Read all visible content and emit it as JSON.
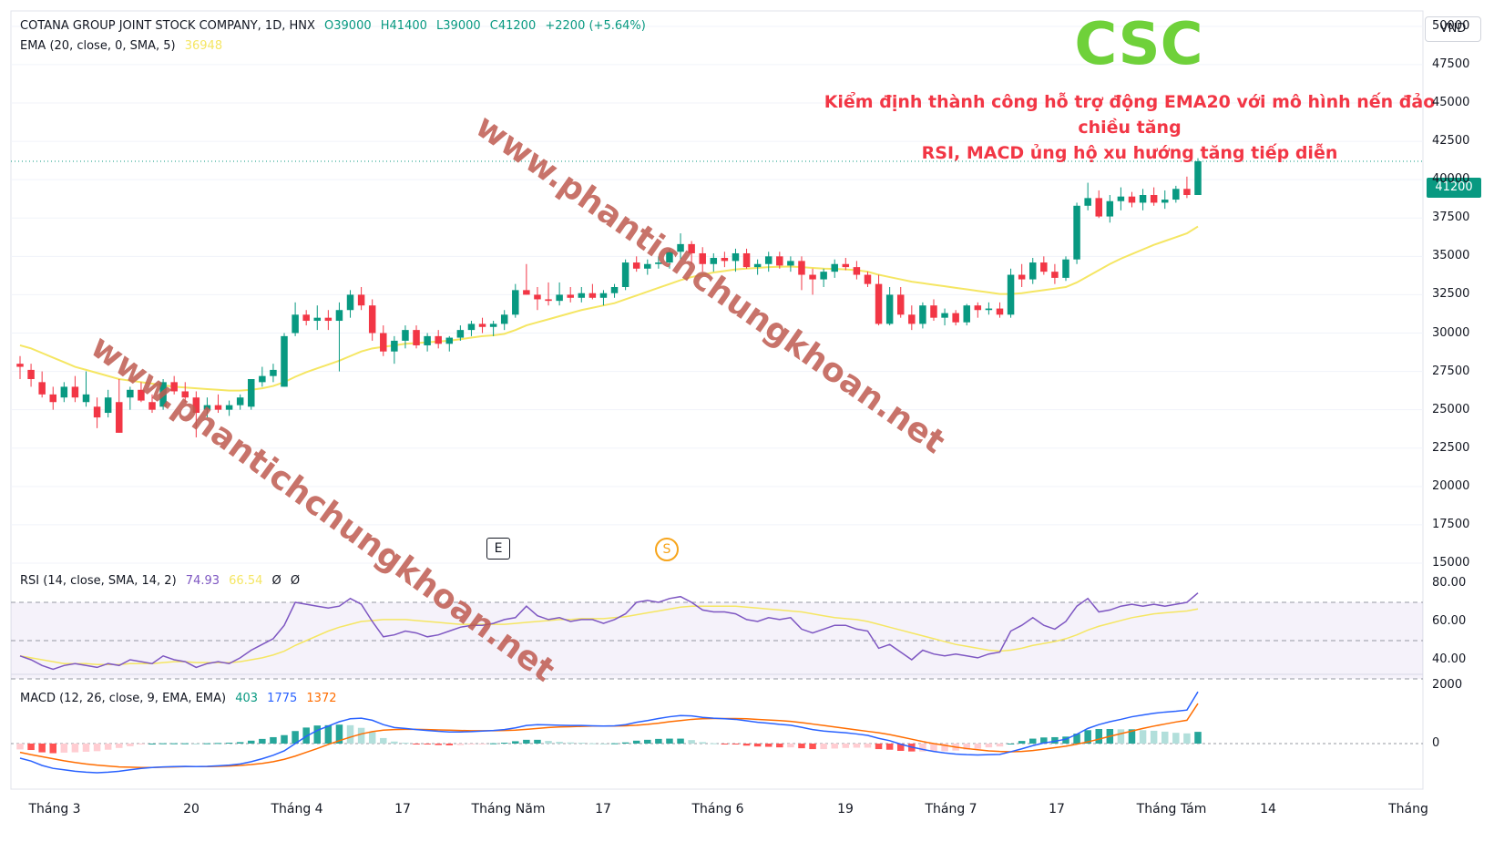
{
  "header": {
    "symbol": "COTANA GROUP JOINT STOCK COMPANY, 1D, HNX",
    "open": "O39000",
    "high": "H41400",
    "low": "L39000",
    "close": "C41200",
    "change": "+2200 (+5.64%)",
    "ema_label": "EMA (20, close, 0, SMA, 5)",
    "ema_value": "36948"
  },
  "ticker": "CSC",
  "annotation": {
    "line1": "Kiểm định thành công hỗ trợ động EMA20 với mô hình nến đảo chiều tăng",
    "line2": "RSI, MACD ủng hộ xu hướng tăng tiếp diễn"
  },
  "watermark": "www.phantichchungkhoan.net",
  "currency": "VND",
  "last_price_tag": "41200",
  "event_markers": {
    "earnings": "E",
    "split": "S"
  },
  "rsi_header": {
    "label": "RSI (14, close, SMA, 14, 2)",
    "value": "74.93",
    "ma": "66.54",
    "extra1": "Ø",
    "extra2": "Ø"
  },
  "macd_header": {
    "label": "MACD (12, 26, close, 9, EMA, EMA)",
    "hist": "403",
    "macd": "1775",
    "signal": "1372"
  },
  "x_labels": [
    "Tháng 3",
    "20",
    "Tháng 4",
    "17",
    "Tháng Năm",
    "17",
    "Tháng 6",
    "19",
    "Tháng 7",
    "17",
    "Tháng Tám",
    "14",
    "Tháng"
  ],
  "y_labels": [
    "50000",
    "47500",
    "45000",
    "42500",
    "40000",
    "37500",
    "35000",
    "32500",
    "30000",
    "27500",
    "25000",
    "22500",
    "20000",
    "17500",
    "15000"
  ],
  "rsi_y_labels": [
    "80.00",
    "60.00",
    "40.00"
  ],
  "macd_y_labels": [
    "2000",
    "0"
  ],
  "colors": {
    "up": "#089981",
    "down": "#f23645",
    "ema": "#f5e663",
    "rsi": "#7e57c2",
    "macd": "#2962ff",
    "signal": "#ff6d00",
    "ticker": "#6fd13a",
    "note": "#f23645"
  },
  "chart_data": {
    "type": "candlestick",
    "ylim": [
      15000,
      51000
    ],
    "candles": [
      [
        28000,
        28500,
        27000,
        27800
      ],
      [
        27600,
        28000,
        26500,
        27000
      ],
      [
        26800,
        27500,
        25800,
        26000
      ],
      [
        26000,
        26500,
        25000,
        25500
      ],
      [
        25800,
        26800,
        25500,
        26500
      ],
      [
        26500,
        27200,
        25500,
        25800
      ],
      [
        25500,
        27500,
        25200,
        26000
      ],
      [
        25200,
        25800,
        23800,
        24500
      ],
      [
        24800,
        26300,
        24500,
        25800
      ],
      [
        25500,
        27000,
        23500,
        23500
      ],
      [
        25800,
        26500,
        25000,
        26300
      ],
      [
        26300,
        26800,
        25500,
        25600
      ],
      [
        25500,
        26000,
        24800,
        25000
      ],
      [
        25200,
        27000,
        25000,
        26800
      ],
      [
        26800,
        27200,
        26000,
        26200
      ],
      [
        26200,
        26800,
        25500,
        25800
      ],
      [
        25800,
        26200,
        23200,
        24800
      ],
      [
        25000,
        25800,
        24500,
        25300
      ],
      [
        25300,
        26000,
        24800,
        25000
      ],
      [
        25000,
        25600,
        24600,
        25300
      ],
      [
        25300,
        26000,
        25000,
        25800
      ],
      [
        25200,
        27000,
        25000,
        27000
      ],
      [
        26800,
        27800,
        26500,
        27200
      ],
      [
        27200,
        28000,
        26800,
        27600
      ],
      [
        26500,
        30000,
        26500,
        29800
      ],
      [
        30000,
        32000,
        29800,
        31200
      ],
      [
        31200,
        31500,
        30500,
        30800
      ],
      [
        30800,
        31800,
        30200,
        31000
      ],
      [
        31000,
        31500,
        30200,
        30800
      ],
      [
        30800,
        32000,
        27500,
        31500
      ],
      [
        31500,
        32800,
        31000,
        32500
      ],
      [
        32500,
        33000,
        31500,
        31800
      ],
      [
        31800,
        32200,
        29500,
        30000
      ],
      [
        30000,
        30500,
        28500,
        28800
      ],
      [
        28800,
        29800,
        28000,
        29500
      ],
      [
        29500,
        30500,
        29000,
        30200
      ],
      [
        30200,
        30500,
        29000,
        29200
      ],
      [
        29200,
        30000,
        28800,
        29800
      ],
      [
        29800,
        30200,
        29000,
        29300
      ],
      [
        29300,
        29800,
        28800,
        29700
      ],
      [
        29700,
        30500,
        29500,
        30200
      ],
      [
        30200,
        30800,
        29800,
        30600
      ],
      [
        30600,
        31000,
        30000,
        30400
      ],
      [
        30400,
        30800,
        29800,
        30600
      ],
      [
        30600,
        31500,
        30200,
        31200
      ],
      [
        31200,
        33200,
        31000,
        32800
      ],
      [
        32800,
        34500,
        32500,
        32500
      ],
      [
        32500,
        33000,
        31500,
        32200
      ],
      [
        32200,
        33300,
        31800,
        32100
      ],
      [
        32100,
        33300,
        31800,
        32500
      ],
      [
        32500,
        33000,
        32000,
        32300
      ],
      [
        32300,
        33000,
        32000,
        32600
      ],
      [
        32600,
        33200,
        32200,
        32300
      ],
      [
        32300,
        32800,
        31800,
        32600
      ],
      [
        32600,
        33200,
        32300,
        33000
      ],
      [
        33000,
        34800,
        32800,
        34600
      ],
      [
        34600,
        35000,
        34000,
        34200
      ],
      [
        34200,
        34800,
        33800,
        34500
      ],
      [
        34500,
        35000,
        34200,
        34600
      ],
      [
        34600,
        35500,
        34200,
        35300
      ],
      [
        35300,
        36500,
        34800,
        35800
      ],
      [
        35800,
        36000,
        34500,
        35200
      ],
      [
        35200,
        35600,
        34000,
        34500
      ],
      [
        34500,
        35200,
        34000,
        34900
      ],
      [
        34900,
        35300,
        34300,
        34700
      ],
      [
        34700,
        35500,
        34000,
        35200
      ],
      [
        35200,
        35500,
        34200,
        34300
      ],
      [
        34300,
        34800,
        33800,
        34500
      ],
      [
        34500,
        35300,
        34000,
        35000
      ],
      [
        35000,
        35300,
        34200,
        34400
      ],
      [
        34400,
        35000,
        34000,
        34700
      ],
      [
        34700,
        35000,
        32800,
        33800
      ],
      [
        33800,
        34200,
        32500,
        33500
      ],
      [
        33500,
        34200,
        33000,
        34000
      ],
      [
        34000,
        34800,
        33600,
        34500
      ],
      [
        34500,
        34900,
        34100,
        34300
      ],
      [
        34300,
        34700,
        33500,
        33800
      ],
      [
        33800,
        34000,
        33000,
        33200
      ],
      [
        33200,
        33800,
        30500,
        30600
      ],
      [
        30600,
        33000,
        30500,
        32500
      ],
      [
        32500,
        33000,
        31000,
        31200
      ],
      [
        31200,
        31800,
        30200,
        30600
      ],
      [
        30600,
        32000,
        30300,
        31800
      ],
      [
        31800,
        32200,
        30800,
        31000
      ],
      [
        31000,
        31600,
        30500,
        31300
      ],
      [
        31300,
        31500,
        30500,
        30700
      ],
      [
        30700,
        31900,
        30500,
        31800
      ],
      [
        31800,
        32000,
        31000,
        31500
      ],
      [
        31500,
        32000,
        31200,
        31600
      ],
      [
        31600,
        32000,
        31000,
        31200
      ],
      [
        31200,
        34200,
        31000,
        33800
      ],
      [
        33800,
        34500,
        33000,
        33500
      ],
      [
        33500,
        34900,
        33200,
        34600
      ],
      [
        34600,
        35000,
        33800,
        34000
      ],
      [
        34000,
        34500,
        33200,
        33600
      ],
      [
        33600,
        35000,
        33400,
        34800
      ],
      [
        34800,
        38500,
        34500,
        38300
      ],
      [
        38300,
        39800,
        38000,
        38800
      ],
      [
        38800,
        39300,
        37500,
        37600
      ],
      [
        37600,
        39000,
        37200,
        38600
      ],
      [
        38600,
        39500,
        38000,
        38900
      ],
      [
        38900,
        39200,
        38200,
        38500
      ],
      [
        38500,
        39400,
        38000,
        39000
      ],
      [
        39000,
        39500,
        38300,
        38500
      ],
      [
        38500,
        39300,
        38100,
        38700
      ],
      [
        38700,
        39600,
        38500,
        39400
      ],
      [
        39400,
        40200,
        38800,
        39000
      ],
      [
        39000,
        41400,
        39000,
        41200
      ]
    ],
    "ema20": [
      29200,
      29000,
      28700,
      28400,
      28100,
      27800,
      27600,
      27400,
      27200,
      27000,
      26900,
      26800,
      26700,
      26600,
      26500,
      26450,
      26400,
      26350,
      26300,
      26250,
      26250,
      26300,
      26400,
      26550,
      26800,
      27150,
      27450,
      27700,
      27950,
      28200,
      28500,
      28800,
      29000,
      29100,
      29200,
      29300,
      29350,
      29400,
      29450,
      29500,
      29600,
      29700,
      29800,
      29850,
      29950,
      30200,
      30500,
      30700,
      30900,
      31100,
      31300,
      31500,
      31650,
      31800,
      31950,
      32200,
      32450,
      32700,
      32950,
      33200,
      33450,
      33650,
      33800,
      33950,
      34050,
      34150,
      34200,
      34250,
      34300,
      34320,
      34340,
      34300,
      34250,
      34200,
      34180,
      34150,
      34100,
      34000,
      33800,
      33650,
      33500,
      33350,
      33250,
      33150,
      33050,
      32950,
      32850,
      32750,
      32650,
      32550,
      32550,
      32600,
      32700,
      32800,
      32900,
      33000,
      33300,
      33700,
      34100,
      34500,
      34850,
      35150,
      35450,
      35750,
      36000,
      36250,
      36500,
      36948
    ],
    "rsi": [
      42,
      40,
      37,
      35,
      37,
      38,
      37,
      36,
      38,
      37,
      40,
      39,
      38,
      42,
      40,
      39,
      36,
      38,
      39,
      38,
      41,
      45,
      48,
      51,
      58,
      70,
      69,
      68,
      67,
      68,
      72,
      69,
      60,
      52,
      53,
      55,
      54,
      52,
      53,
      55,
      57,
      58,
      58,
      59,
      61,
      62,
      68,
      63,
      61,
      62,
      60,
      61,
      61,
      59,
      61,
      64,
      70,
      71,
      70,
      72,
      73,
      70,
      66,
      65,
      65,
      64,
      61,
      60,
      62,
      61,
      62,
      56,
      54,
      56,
      58,
      58,
      56,
      55,
      46,
      48,
      44,
      40,
      45,
      43,
      42,
      43,
      42,
      41,
      43,
      44,
      55,
      58,
      62,
      58,
      56,
      60,
      68,
      72,
      65,
      66,
      68,
      69,
      68,
      69,
      68,
      69,
      70,
      74.93
    ],
    "rsi_ma": [
      42,
      41,
      40,
      39,
      38,
      38,
      38,
      37.5,
      37.5,
      37.5,
      38,
      38,
      38,
      38.5,
      39,
      39,
      38.5,
      38.5,
      38.5,
      38.5,
      39,
      40,
      41,
      42.5,
      44.5,
      47.5,
      50,
      52.5,
      55,
      57,
      58.5,
      60,
      60.5,
      61,
      61,
      61,
      60.5,
      60,
      59.5,
      59,
      58.5,
      58.5,
      58.5,
      58.5,
      58.5,
      59,
      59.5,
      60,
      60.5,
      61,
      61,
      61.5,
      61.5,
      61.5,
      62,
      62.5,
      63.5,
      64.5,
      65.5,
      66.5,
      67.5,
      68,
      68,
      68,
      68,
      68,
      67.5,
      67,
      66.5,
      66,
      65.5,
      65,
      64,
      63,
      62,
      61.5,
      61,
      60,
      58.5,
      57,
      55.5,
      54,
      52.5,
      51,
      49.5,
      48,
      47,
      46,
      45,
      44.5,
      45,
      46,
      47.5,
      48.5,
      49.5,
      51,
      53,
      55.5,
      57.5,
      59,
      60.5,
      62,
      63,
      64,
      64.5,
      65,
      65.5,
      66.54
    ],
    "macd": [
      -500,
      -600,
      -750,
      -850,
      -900,
      -950,
      -980,
      -1000,
      -980,
      -950,
      -900,
      -850,
      -820,
      -800,
      -790,
      -780,
      -790,
      -780,
      -760,
      -740,
      -700,
      -620,
      -520,
      -400,
      -250,
      0,
      250,
      450,
      600,
      750,
      850,
      870,
      800,
      650,
      550,
      520,
      480,
      450,
      420,
      400,
      400,
      410,
      430,
      450,
      480,
      540,
      620,
      650,
      640,
      630,
      620,
      620,
      610,
      600,
      610,
      650,
      730,
      790,
      860,
      920,
      960,
      950,
      900,
      870,
      850,
      830,
      780,
      730,
      700,
      660,
      630,
      560,
      480,
      430,
      400,
      370,
      330,
      280,
      180,
      100,
      -20,
      -120,
      -200,
      -270,
      -320,
      -360,
      -380,
      -390,
      -380,
      -370,
      -280,
      -180,
      -70,
      20,
      80,
      150,
      320,
      520,
      650,
      750,
      830,
      920,
      980,
      1040,
      1080,
      1110,
      1150,
      1775
    ],
    "signal": [
      -300,
      -380,
      -450,
      -520,
      -590,
      -650,
      -700,
      -740,
      -770,
      -800,
      -810,
      -820,
      -820,
      -810,
      -800,
      -790,
      -790,
      -790,
      -780,
      -770,
      -750,
      -720,
      -680,
      -620,
      -540,
      -430,
      -300,
      -170,
      -30,
      100,
      220,
      330,
      410,
      460,
      480,
      490,
      490,
      480,
      470,
      460,
      450,
      440,
      440,
      440,
      450,
      460,
      490,
      520,
      550,
      570,
      580,
      590,
      600,
      600,
      600,
      610,
      630,
      660,
      700,
      750,
      790,
      830,
      850,
      860,
      860,
      860,
      850,
      830,
      810,
      790,
      760,
      720,
      670,
      620,
      570,
      520,
      470,
      420,
      370,
      310,
      230,
      150,
      70,
      0,
      -60,
      -120,
      -170,
      -210,
      -250,
      -270,
      -280,
      -270,
      -240,
      -190,
      -140,
      -90,
      -20,
      60,
      150,
      250,
      340,
      430,
      520,
      600,
      670,
      740,
      800,
      1372
    ]
  }
}
